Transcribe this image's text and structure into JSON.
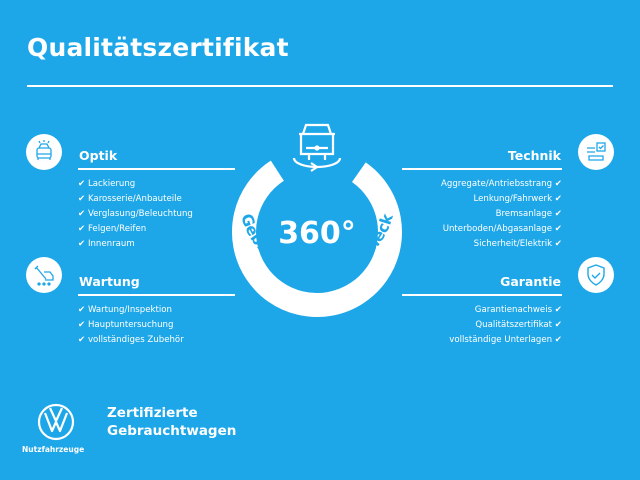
{
  "header": {
    "title": "Qualitätszertifikat"
  },
  "check_mark": "✔",
  "center": {
    "value": "360°",
    "ring_text": "Gebrauchtwagen-Check",
    "icon": "car-rotate-icon"
  },
  "sections": {
    "optik": {
      "title": "Optik",
      "icon": "car-lights-icon",
      "items": [
        "Lackierung",
        "Karosserie/Anbauteile",
        "Verglasung/Beleuchtung",
        "Felgen/Reifen",
        "Innenraum"
      ]
    },
    "wartung": {
      "title": "Wartung",
      "icon": "tools-car-icon",
      "items": [
        "Wartung/Inspektion",
        "Hauptuntersuchung",
        "vollständiges Zubehör"
      ]
    },
    "technik": {
      "title": "Technik",
      "icon": "car-checklist-icon",
      "items": [
        "Aggregate/Antriebsstrang",
        "Lenkung/Fahrwerk",
        "Bremsanlage",
        "Unterboden/Abgasanlage",
        "Sicherheit/Elektrik"
      ]
    },
    "garantie": {
      "title": "Garantie",
      "icon": "shield-check-icon",
      "items": [
        "Garantienachweis",
        "Qualitätszertifikat",
        "vollständige Unterlagen"
      ]
    }
  },
  "footer": {
    "logo_text": "Nutzfahrzeuge",
    "brand_line1": "Zertifizierte",
    "brand_line2": "Gebrauchtwagen"
  },
  "colors": {
    "background": "#1ea7e8",
    "foreground": "#ffffff"
  }
}
